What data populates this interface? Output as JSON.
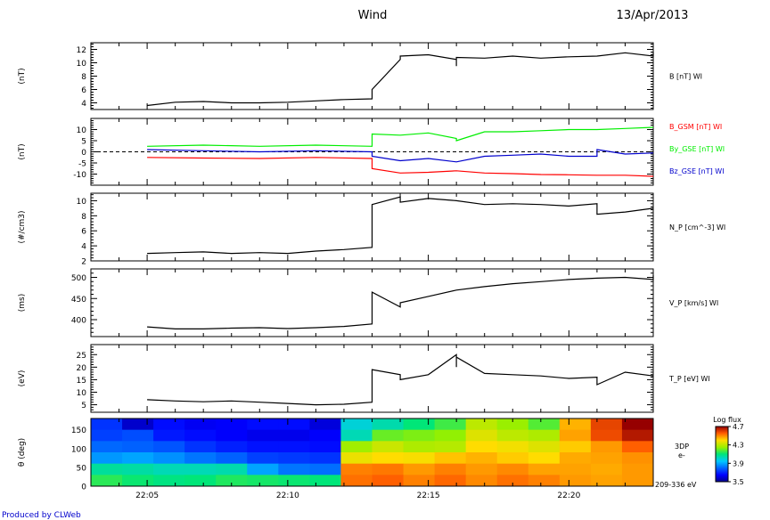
{
  "header": {
    "instrument": "Wind",
    "date": "13/Apr/2013"
  },
  "footer": {
    "credit": "Produced by CLWeb"
  },
  "colors": {
    "black": "#000000",
    "bx": "#ff0000",
    "by": "#00ee00",
    "bz": "#0000cc",
    "credit": "#0000cc"
  },
  "chart_data": [
    {
      "type": "line",
      "ylabel": "(nT)",
      "ylim": [
        3,
        13
      ],
      "yticks": [
        4,
        6,
        8,
        10,
        12
      ],
      "series": [
        {
          "name": "B [nT] WI",
          "color": "#000000",
          "x": [
            22.05,
            22.06,
            22.07,
            22.08,
            22.09,
            22.1,
            22.11,
            22.12,
            22.13,
            22.132,
            22.135,
            22.14,
            22.15,
            22.155,
            22.16,
            22.165,
            22.17,
            22.18,
            22.19,
            22.2,
            22.21,
            22.22,
            22.23,
            22.233
          ],
          "y": [
            3.6,
            4.1,
            4.2,
            4.0,
            4.0,
            4.1,
            4.3,
            4.5,
            4.6,
            6.0,
            10.5,
            11.0,
            11.2,
            10.5,
            9.5,
            10.8,
            10.7,
            11.0,
            10.7,
            10.9,
            11.0,
            11.5,
            11.0,
            11.6
          ]
        }
      ]
    },
    {
      "type": "line",
      "ylabel": "(nT)",
      "ylim": [
        -15,
        15
      ],
      "yticks": [
        -10,
        -5,
        0,
        5,
        10
      ],
      "zero_line": true,
      "series": [
        {
          "name": "B_GSM [nT] WI",
          "color": "#ff0000",
          "x": [
            22.05,
            22.07,
            22.09,
            22.11,
            22.13,
            22.133,
            22.14,
            22.15,
            22.16,
            22.17,
            22.18,
            22.19,
            22.2,
            22.21,
            22.22,
            22.233
          ],
          "y": [
            -2.5,
            -2.8,
            -3.0,
            -2.5,
            -3.0,
            -7.5,
            -9.5,
            -9.2,
            -8.5,
            -9.5,
            -9.8,
            -10.2,
            -10.3,
            -10.5,
            -10.5,
            -11.0
          ]
        },
        {
          "name": "By_GSE [nT] WI",
          "color": "#00ee00",
          "x": [
            22.05,
            22.07,
            22.09,
            22.11,
            22.13,
            22.133,
            22.14,
            22.15,
            22.16,
            22.165,
            22.17,
            22.18,
            22.19,
            22.2,
            22.21,
            22.22,
            22.233
          ],
          "y": [
            2.5,
            3.0,
            2.5,
            3.0,
            2.5,
            8.0,
            7.5,
            8.5,
            6.0,
            5.0,
            9.0,
            9.0,
            9.5,
            10.0,
            10.0,
            10.5,
            11.0
          ]
        },
        {
          "name": "Bz_GSE [nT] WI",
          "color": "#0000cc",
          "x": [
            22.05,
            22.07,
            22.09,
            22.11,
            22.13,
            22.133,
            22.14,
            22.15,
            22.16,
            22.17,
            22.18,
            22.19,
            22.2,
            22.21,
            22.215,
            22.22,
            22.233
          ],
          "y": [
            1.0,
            0.5,
            0.0,
            0.5,
            0.0,
            -2.0,
            -4.0,
            -3.0,
            -4.5,
            -2.0,
            -1.5,
            -1.0,
            -2.0,
            -2.0,
            1.0,
            -1.0,
            -0.5
          ]
        }
      ]
    },
    {
      "type": "line",
      "ylabel": "(#/cm3)",
      "ylim": [
        2,
        11
      ],
      "yticks": [
        2,
        4,
        6,
        8,
        10
      ],
      "series": [
        {
          "name": "N_P [cm^-3] WI",
          "color": "#000000",
          "x": [
            22.05,
            22.06,
            22.07,
            22.08,
            22.09,
            22.1,
            22.11,
            22.12,
            22.13,
            22.133,
            22.137,
            22.145,
            22.15,
            22.16,
            22.17,
            22.18,
            22.19,
            22.2,
            22.21,
            22.215,
            22.22,
            22.233
          ],
          "y": [
            3.0,
            3.1,
            3.2,
            3.0,
            3.1,
            3.0,
            3.3,
            3.5,
            3.8,
            9.5,
            10.5,
            9.8,
            10.3,
            10.0,
            9.5,
            9.6,
            9.5,
            9.3,
            9.6,
            8.2,
            8.5,
            9.0
          ]
        }
      ]
    },
    {
      "type": "line",
      "ylabel": "(ms)",
      "ylim": [
        360,
        520
      ],
      "yticks": [
        400,
        450,
        500
      ],
      "series": [
        {
          "name": "V_P [km/s] WI",
          "color": "#000000",
          "x": [
            22.05,
            22.06,
            22.07,
            22.08,
            22.09,
            22.1,
            22.11,
            22.12,
            22.13,
            22.132,
            22.135,
            22.14,
            22.15,
            22.16,
            22.17,
            22.18,
            22.19,
            22.2,
            22.21,
            22.22,
            22.23,
            22.233
          ],
          "y": [
            383,
            378,
            378,
            380,
            381,
            379,
            381,
            384,
            390,
            465,
            430,
            440,
            455,
            470,
            478,
            485,
            490,
            495,
            498,
            500,
            495,
            505
          ]
        }
      ]
    },
    {
      "type": "line",
      "ylabel": "(eV)",
      "ylim": [
        2,
        29
      ],
      "yticks": [
        5,
        10,
        15,
        20,
        25
      ],
      "series": [
        {
          "name": "T_P [eV] WI",
          "color": "#000000",
          "x": [
            22.05,
            22.06,
            22.07,
            22.08,
            22.09,
            22.1,
            22.11,
            22.12,
            22.13,
            22.133,
            22.14,
            22.145,
            22.15,
            22.155,
            22.16,
            22.165,
            22.17,
            22.18,
            22.19,
            22.2,
            22.21,
            22.215,
            22.22,
            22.233
          ],
          "y": [
            7.0,
            6.5,
            6.2,
            6.5,
            6.0,
            5.5,
            5.0,
            5.2,
            6.0,
            19.0,
            17.0,
            15.0,
            17.0,
            25.0,
            20.0,
            24.0,
            17.5,
            17.0,
            16.5,
            15.5,
            16.0,
            13.0,
            18.0,
            16.5
          ]
        }
      ]
    },
    {
      "type": "heatmap",
      "ylabel": "θ (deg)",
      "ylim": [
        0,
        180
      ],
      "yticks": [
        0,
        50,
        100,
        150
      ],
      "xlim": [
        22.0333,
        22.2333
      ],
      "xticks": [
        22.05,
        22.1,
        22.15,
        22.2
      ],
      "xtick_labels": [
        "22:05",
        "22:10",
        "22:15",
        "22:20"
      ],
      "labels": [
        "3DP",
        "e-",
        "209-336 eV"
      ],
      "colorbar": {
        "title": "Log flux",
        "min": 3.5,
        "max": 4.7,
        "ticks": [
          3.5,
          3.9,
          4.3,
          4.7
        ]
      },
      "rows_top_to_bottom": [
        [
          3.72,
          3.58,
          3.66,
          3.63,
          3.64,
          3.66,
          3.66,
          3.6,
          3.99,
          4.04,
          4.1,
          4.16,
          4.3,
          4.25,
          4.18,
          4.45,
          4.59,
          4.7
        ],
        [
          3.74,
          3.76,
          3.68,
          3.66,
          3.64,
          3.62,
          3.62,
          3.64,
          4.03,
          4.2,
          4.22,
          4.24,
          4.35,
          4.3,
          4.28,
          4.47,
          4.58,
          4.66
        ],
        [
          3.8,
          3.79,
          3.77,
          3.72,
          3.69,
          3.67,
          3.67,
          3.66,
          4.26,
          4.32,
          4.28,
          4.29,
          4.4,
          4.38,
          4.35,
          4.42,
          4.48,
          4.55
        ],
        [
          3.87,
          3.89,
          3.86,
          3.82,
          3.79,
          3.74,
          3.73,
          3.72,
          4.37,
          4.4,
          4.39,
          4.43,
          4.45,
          4.42,
          4.4,
          4.46,
          4.47,
          4.49
        ],
        [
          4.06,
          4.05,
          4.03,
          4.03,
          4.04,
          3.89,
          3.82,
          3.81,
          4.51,
          4.52,
          4.48,
          4.51,
          4.48,
          4.5,
          4.47,
          4.47,
          4.46,
          4.48
        ],
        [
          4.14,
          4.11,
          4.09,
          4.1,
          4.13,
          4.12,
          4.11,
          4.1,
          4.53,
          4.55,
          4.51,
          4.54,
          4.5,
          4.53,
          4.51,
          4.48,
          4.47,
          4.48
        ]
      ]
    }
  ]
}
